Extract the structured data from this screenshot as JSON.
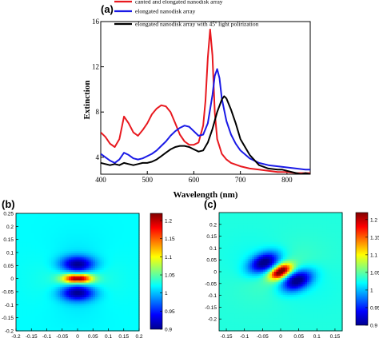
{
  "chart_data": [
    {
      "type": "line",
      "panel_label": "(a)",
      "xlabel": "Wavelength (nm)",
      "ylabel": "Extinction",
      "xlim": [
        400,
        850
      ],
      "ylim": [
        2.5,
        16
      ],
      "xticks": [
        400,
        500,
        600,
        700,
        800
      ],
      "yticks": [
        4,
        8,
        12,
        16
      ],
      "grid": false,
      "legend_position": "top",
      "series": [
        {
          "name": "canted and elongated nanodisk array",
          "color": "#e8191f",
          "x": [
            400,
            410,
            420,
            430,
            440,
            450,
            460,
            470,
            480,
            490,
            500,
            510,
            520,
            530,
            540,
            550,
            560,
            570,
            580,
            590,
            600,
            610,
            620,
            625,
            630,
            635,
            640,
            645,
            650,
            660,
            670,
            680,
            700,
            720,
            740,
            760,
            780,
            800,
            820,
            840,
            850
          ],
          "y": [
            6.2,
            5.8,
            5.2,
            4.9,
            5.6,
            7.6,
            7.0,
            6.2,
            5.9,
            6.4,
            7.0,
            7.8,
            8.3,
            8.6,
            8.5,
            8.0,
            7.0,
            6.0,
            5.4,
            5.1,
            5.1,
            5.3,
            6.8,
            9.0,
            12.8,
            15.3,
            13.0,
            8.0,
            5.6,
            4.3,
            3.8,
            3.5,
            3.2,
            3.0,
            2.9,
            2.8,
            2.7,
            2.7,
            2.6,
            2.6,
            2.6
          ]
        },
        {
          "name": "elongated nanodisk array",
          "color": "#1a1ae6",
          "x": [
            400,
            410,
            420,
            430,
            440,
            450,
            460,
            470,
            480,
            490,
            500,
            510,
            520,
            530,
            540,
            550,
            560,
            570,
            580,
            590,
            600,
            610,
            620,
            630,
            640,
            645,
            650,
            655,
            660,
            670,
            680,
            690,
            700,
            720,
            740,
            760,
            780,
            800,
            820,
            840,
            850
          ],
          "y": [
            4.3,
            4.0,
            3.7,
            3.5,
            3.8,
            4.4,
            4.2,
            3.9,
            3.8,
            3.9,
            4.1,
            4.3,
            4.6,
            5.0,
            5.4,
            5.9,
            6.3,
            6.6,
            6.8,
            6.7,
            6.3,
            5.9,
            6.0,
            7.0,
            9.5,
            11.2,
            11.8,
            11.0,
            9.2,
            7.2,
            6.0,
            5.2,
            4.6,
            3.9,
            3.5,
            3.3,
            3.2,
            3.1,
            3.0,
            2.9,
            2.9
          ]
        },
        {
          "name": "elongated nanodisk array with 45º light polirization",
          "color": "#000000",
          "x": [
            400,
            410,
            420,
            430,
            440,
            450,
            460,
            470,
            480,
            490,
            500,
            510,
            520,
            530,
            540,
            550,
            560,
            570,
            580,
            590,
            600,
            610,
            620,
            630,
            640,
            650,
            660,
            665,
            670,
            680,
            690,
            700,
            720,
            740,
            760,
            780,
            790,
            800,
            810,
            820,
            830,
            840,
            850
          ],
          "y": [
            3.5,
            3.4,
            3.3,
            3.4,
            3.3,
            3.5,
            3.4,
            3.3,
            3.4,
            3.5,
            3.5,
            3.6,
            3.8,
            4.1,
            4.4,
            4.7,
            4.9,
            5.0,
            5.0,
            4.9,
            4.7,
            4.5,
            4.6,
            5.3,
            6.5,
            8.0,
            9.1,
            9.4,
            9.2,
            8.2,
            7.0,
            5.6,
            4.2,
            3.3,
            3.0,
            2.9,
            2.9,
            2.8,
            2.7,
            2.6,
            2.5,
            2.6,
            2.5
          ]
        }
      ]
    },
    {
      "type": "heatmap",
      "panel_label": "(b)",
      "xlim": [
        -0.2,
        0.2
      ],
      "ylim": [
        -0.2,
        0.25
      ],
      "xticks": [
        -0.2,
        -0.15,
        -0.1,
        -0.05,
        0,
        0.05,
        0.1,
        0.15,
        0.2
      ],
      "yticks": [
        -0.2,
        -0.15,
        -0.1,
        -0.05,
        0,
        0.05,
        0.1,
        0.15,
        0.2,
        0.25
      ],
      "colorbar": {
        "ticks": [
          0.9,
          0.95,
          1,
          1.05,
          1.1,
          1.15,
          1.2
        ],
        "range": [
          0.9,
          1.22
        ]
      },
      "field": {
        "background": 1.02,
        "hot_amp": 0.2,
        "cold_amp": 0.11,
        "hot_size": [
          0.045,
          0.018
        ],
        "cold_offset": 0.055,
        "cold_size": [
          0.055,
          0.03
        ],
        "rotation_deg": 0
      }
    },
    {
      "type": "heatmap",
      "panel_label": "(c)",
      "xlim": [
        -0.17,
        0.17
      ],
      "ylim": [
        -0.25,
        0.25
      ],
      "xticks": [
        -0.15,
        -0.1,
        -0.05,
        0,
        0.05,
        0.1,
        0.15
      ],
      "yticks": [
        -0.2,
        -0.15,
        -0.1,
        -0.05,
        0,
        0.05,
        0.1,
        0.15,
        0.2
      ],
      "colorbar": {
        "ticks": [
          0.9,
          0.95,
          1,
          1.05,
          1.1,
          1.15,
          1.2
        ],
        "range": [
          0.9,
          1.22
        ]
      },
      "field": {
        "background": 1.03,
        "hot_amp": 0.22,
        "cold_amp": 0.13,
        "hot_size": [
          0.035,
          0.022
        ],
        "cold_offset": 0.06,
        "cold_size": [
          0.05,
          0.032
        ],
        "rotation_deg": 50
      }
    }
  ]
}
